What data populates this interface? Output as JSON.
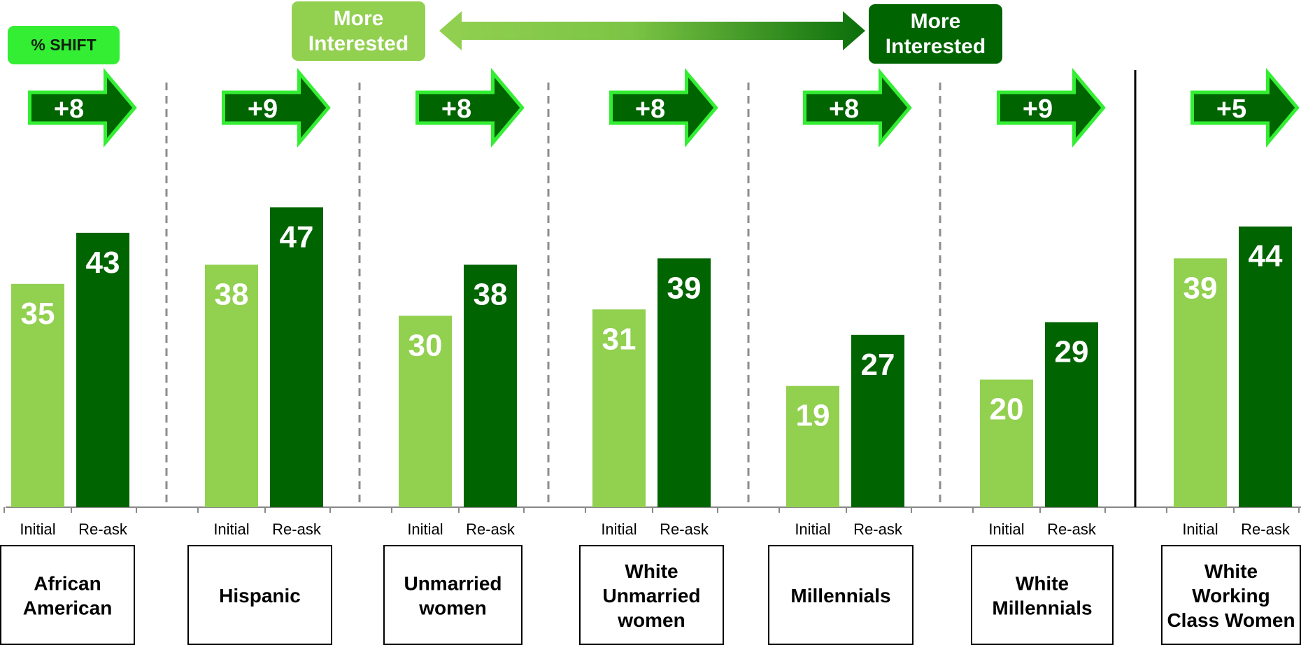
{
  "header": {
    "shift_label": "% SHIFT",
    "less_interested_label": "More Interested",
    "more_interested_label": "More Interested"
  },
  "colors": {
    "initial": "#92d050",
    "reask": "#006400",
    "shift_arrow_fill": "#006400",
    "shift_arrow_border": "#33ee33",
    "shift_box": "#33ee33"
  },
  "chart_data": {
    "type": "bar",
    "title": "",
    "xlabel": "",
    "ylabel": "",
    "ylim": [
      0,
      100
    ],
    "grid": false,
    "bar_labels": [
      "Initial",
      "Re-ask"
    ],
    "groups": [
      {
        "name": "African American",
        "initial": 35,
        "reask": 43,
        "shift": "+8"
      },
      {
        "name": "Hispanic",
        "initial": 38,
        "reask": 47,
        "shift": "+9"
      },
      {
        "name": "Unmarried women",
        "initial": 30,
        "reask": 38,
        "shift": "+8"
      },
      {
        "name": "White Unmarried women",
        "initial": 31,
        "reask": 39,
        "shift": "+8"
      },
      {
        "name": "Millennials",
        "initial": 19,
        "reask": 27,
        "shift": "+8"
      },
      {
        "name": "White Millennials",
        "initial": 20,
        "reask": 29,
        "shift": "+9"
      },
      {
        "name": "White Working Class Women",
        "initial": 39,
        "reask": 44,
        "shift": "+5"
      }
    ]
  }
}
